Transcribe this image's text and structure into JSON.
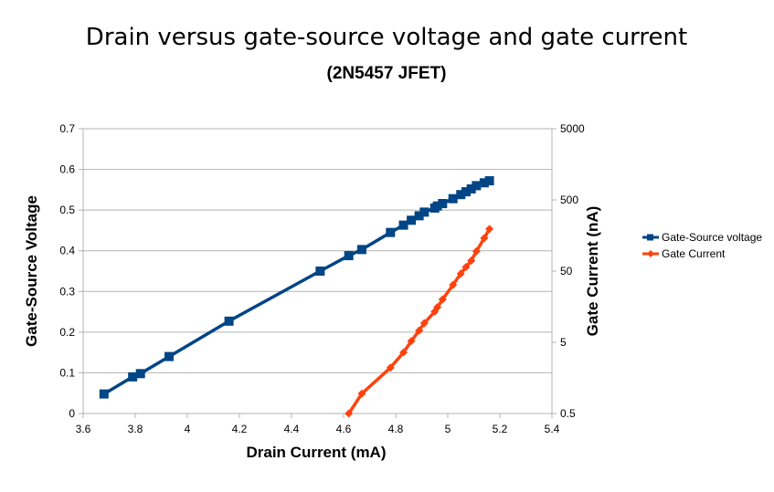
{
  "chart_data": {
    "type": "line",
    "title": "Drain versus gate-source voltage and gate current",
    "subtitle": "(2N5457 JFET)",
    "xlabel": "Drain Current (mA)",
    "ylabel_left": "Gate-Source Voltage",
    "ylabel_right": "Gate Current (nA)",
    "xlim": [
      3.6,
      5.4
    ],
    "ylim_left": [
      0,
      0.7
    ],
    "ylim_right": [
      0.5,
      5000
    ],
    "right_axis_scale": "log",
    "x_ticks": [
      "3.6",
      "3.8",
      "4",
      "4.2",
      "4.4",
      "4.6",
      "4.8",
      "5",
      "5.2",
      "5.4"
    ],
    "y_left_ticks": [
      "0",
      "0.1",
      "0.2",
      "0.3",
      "0.4",
      "0.5",
      "0.6",
      "0.7"
    ],
    "y_right_ticks": [
      "0.5",
      "5",
      "50",
      "500",
      "5000"
    ],
    "grid": "horizontal major gridlines",
    "legend_position": "right",
    "series": [
      {
        "name": "Gate-Source voltage",
        "axis": "left",
        "color": "#004586",
        "marker": "square",
        "x": [
          3.68,
          3.79,
          3.82,
          3.93,
          4.16,
          4.51,
          4.62,
          4.67,
          4.78,
          4.83,
          4.86,
          4.89,
          4.91,
          4.95,
          4.96,
          4.98,
          5.02,
          5.05,
          5.07,
          5.09,
          5.11,
          5.14,
          5.16
        ],
        "values": [
          0.048,
          0.09,
          0.098,
          0.14,
          0.227,
          0.35,
          0.388,
          0.403,
          0.445,
          0.463,
          0.475,
          0.486,
          0.495,
          0.505,
          0.51,
          0.516,
          0.528,
          0.538,
          0.545,
          0.552,
          0.56,
          0.567,
          0.572
        ]
      },
      {
        "name": "Gate Current",
        "axis": "right",
        "color": "#ff420e",
        "marker": "diamond",
        "x": [
          4.62,
          4.67,
          4.78,
          4.83,
          4.86,
          4.89,
          4.91,
          4.95,
          4.96,
          4.98,
          5.02,
          5.05,
          5.07,
          5.09,
          5.11,
          5.14,
          5.16
        ],
        "values": [
          0.5,
          0.95,
          2.2,
          3.6,
          5.2,
          7.3,
          9.3,
          13.5,
          15.5,
          20,
          32,
          46,
          57,
          70,
          95,
          145,
          195
        ]
      }
    ]
  }
}
